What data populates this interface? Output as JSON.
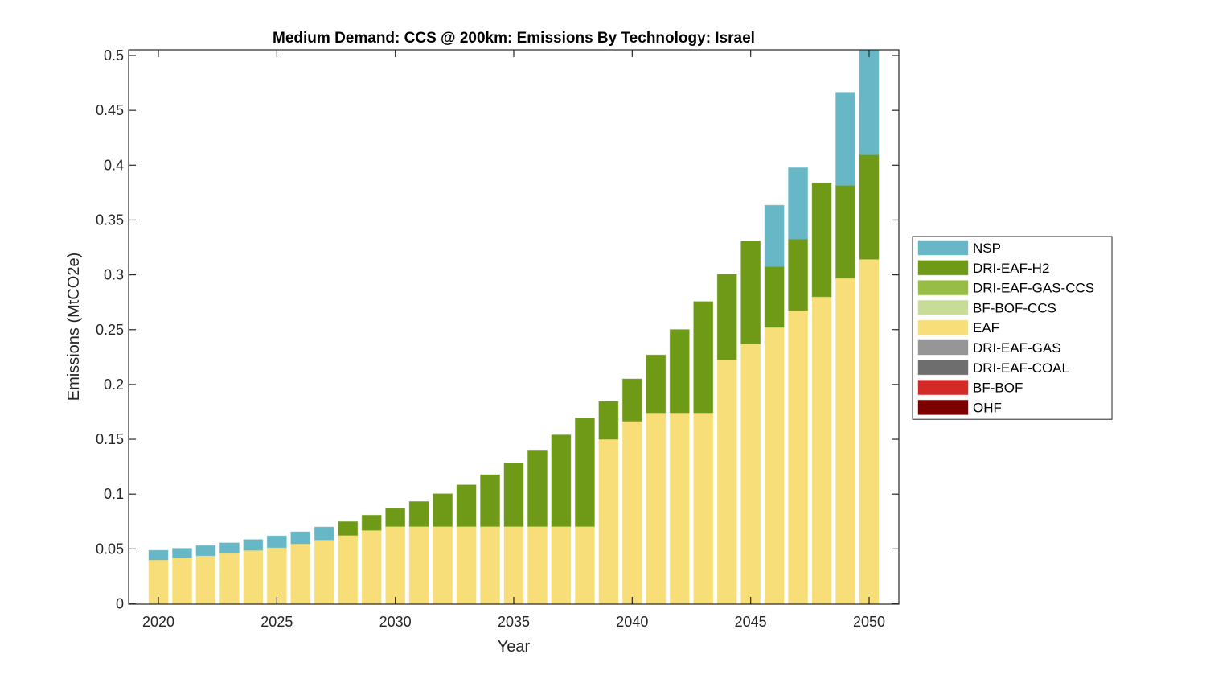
{
  "chart_data": {
    "type": "bar",
    "stacked": true,
    "title": "Medium Demand: CCS @ 200km: Emissions By Technology: Israel",
    "xlabel": "Year",
    "ylabel": "Emissions (MtCO2e)",
    "xlim": [
      2019.3,
      2051.2
    ],
    "ylim": [
      0,
      0.505
    ],
    "grid": false,
    "legend_position": "right",
    "x_ticks": [
      2020,
      2025,
      2030,
      2035,
      2040,
      2045,
      2050
    ],
    "x_tick_labels": [
      "2020",
      "2025",
      "2030",
      "2035",
      "2040",
      "2045",
      "2050"
    ],
    "y_ticks": [
      0,
      0.05,
      0.1,
      0.15,
      0.2,
      0.25,
      0.3,
      0.35,
      0.4,
      0.45,
      0.5
    ],
    "y_tick_labels": [
      "0",
      "0.05",
      "0.1",
      "0.15",
      "0.2",
      "0.25",
      "0.3",
      "0.35",
      "0.4",
      "0.45",
      "0.5"
    ],
    "categories": [
      2020,
      2021,
      2022,
      2023,
      2024,
      2025,
      2026,
      2027,
      2028,
      2029,
      2030,
      2031,
      2032,
      2033,
      2034,
      2035,
      2036,
      2037,
      2038,
      2039,
      2040,
      2041,
      2042,
      2043,
      2044,
      2045,
      2046,
      2047,
      2048,
      2049,
      2050
    ],
    "stack_order_bottom_to_top": [
      "OHF",
      "BF-BOF",
      "DRI-EAF-COAL",
      "DRI-EAF-GAS",
      "EAF",
      "BF-BOF-CCS",
      "DRI-EAF-GAS-CCS",
      "DRI-EAF-H2",
      "NSP"
    ],
    "series": [
      {
        "name": "NSP",
        "color": "#67b7c7",
        "values": [
          0.0087,
          0.0084,
          0.0092,
          0.0094,
          0.0098,
          0.0107,
          0.011,
          0.0118,
          0,
          0,
          0,
          0,
          0,
          0,
          0,
          0,
          0,
          0,
          0,
          0,
          0,
          0,
          0,
          0,
          0,
          0,
          0.0558,
          0.0651,
          0,
          0.0849,
          0.0955
        ]
      },
      {
        "name": "DRI-EAF-H2",
        "color": "#6e9a18",
        "values": [
          0,
          0,
          0,
          0,
          0,
          0,
          0,
          0,
          0.0125,
          0.0138,
          0.0164,
          0.0227,
          0.0298,
          0.0379,
          0.0472,
          0.0578,
          0.0697,
          0.0835,
          0.0989,
          0.0345,
          0.0385,
          0.0527,
          0.0759,
          0.1014,
          0.078,
          0.0939,
          0.0555,
          0.0651,
          0.1038,
          0.0847,
          0.0953
        ]
      },
      {
        "name": "DRI-EAF-GAS-CCS",
        "color": "#97bd45",
        "values": [
          0,
          0,
          0,
          0,
          0,
          0,
          0,
          0,
          0,
          0,
          0,
          0,
          0,
          0,
          0,
          0,
          0,
          0,
          0,
          0,
          0,
          0,
          0,
          0,
          0,
          0,
          0,
          0,
          0,
          0,
          0
        ]
      },
      {
        "name": "BF-BOF-CCS",
        "color": "#c8dc9a",
        "values": [
          0,
          0,
          0,
          0,
          0,
          0,
          0,
          0,
          0,
          0,
          0,
          0,
          0,
          0,
          0,
          0,
          0,
          0,
          0,
          0,
          0,
          0,
          0,
          0,
          0,
          0,
          0,
          0,
          0,
          0,
          0
        ]
      },
      {
        "name": "EAF",
        "color": "#f7de78",
        "values": [
          0.04,
          0.0421,
          0.0438,
          0.0461,
          0.0487,
          0.0512,
          0.0546,
          0.0582,
          0.0624,
          0.067,
          0.0705,
          0.0705,
          0.0705,
          0.0705,
          0.0705,
          0.0705,
          0.0705,
          0.0705,
          0.0705,
          0.15,
          0.1665,
          0.1742,
          0.1742,
          0.1742,
          0.2225,
          0.237,
          0.2521,
          0.2675,
          0.28,
          0.2969,
          0.3142
        ]
      },
      {
        "name": "DRI-EAF-GAS",
        "color": "#969696",
        "values": [
          0,
          0,
          0,
          0,
          0,
          0,
          0,
          0,
          0,
          0,
          0,
          0,
          0,
          0,
          0,
          0,
          0,
          0,
          0,
          0,
          0,
          0,
          0,
          0,
          0,
          0,
          0,
          0,
          0,
          0,
          0
        ]
      },
      {
        "name": "DRI-EAF-COAL",
        "color": "#6e6e6e",
        "values": [
          0,
          0,
          0,
          0,
          0,
          0,
          0,
          0,
          0,
          0,
          0,
          0,
          0,
          0,
          0,
          0,
          0,
          0,
          0,
          0,
          0,
          0,
          0,
          0,
          0,
          0,
          0,
          0,
          0,
          0,
          0
        ]
      },
      {
        "name": "BF-BOF",
        "color": "#d42a27",
        "values": [
          0,
          0,
          0,
          0,
          0,
          0,
          0,
          0,
          0,
          0,
          0,
          0,
          0,
          0,
          0,
          0,
          0,
          0,
          0,
          0,
          0,
          0,
          0,
          0,
          0,
          0,
          0,
          0,
          0,
          0,
          0
        ]
      },
      {
        "name": "OHF",
        "color": "#7d0000",
        "values": [
          0,
          0,
          0,
          0,
          0,
          0,
          0,
          0,
          0,
          0,
          0,
          0,
          0,
          0,
          0,
          0,
          0,
          0,
          0,
          0,
          0,
          0,
          0,
          0,
          0,
          0,
          0,
          0,
          0,
          0,
          0
        ]
      }
    ],
    "legend": [
      {
        "label": "NSP",
        "color": "#67b7c7"
      },
      {
        "label": "DRI-EAF-H2",
        "color": "#6e9a18"
      },
      {
        "label": "DRI-EAF-GAS-CCS",
        "color": "#97bd45"
      },
      {
        "label": "BF-BOF-CCS",
        "color": "#c8dc9a"
      },
      {
        "label": "EAF",
        "color": "#f7de78"
      },
      {
        "label": "DRI-EAF-GAS",
        "color": "#969696"
      },
      {
        "label": "DRI-EAF-COAL",
        "color": "#6e6e6e"
      },
      {
        "label": "BF-BOF",
        "color": "#d42a27"
      },
      {
        "label": "OHF",
        "color": "#7d0000"
      }
    ]
  }
}
